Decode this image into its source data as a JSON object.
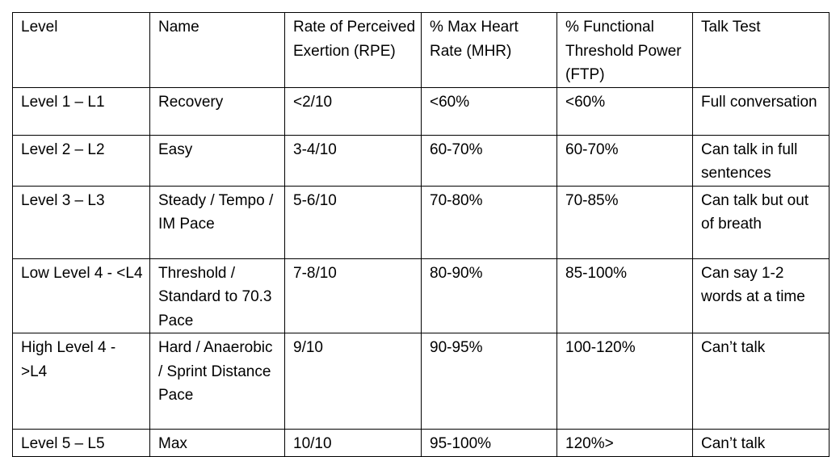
{
  "table": {
    "header": [
      "Level",
      "Name",
      "Rate of Perceived Exertion (RPE)",
      "% Max Heart Rate (MHR)",
      "% Functional Threshold Power (FTP)",
      "Talk Test"
    ],
    "rows": [
      [
        "Level 1 – L1",
        "Recovery",
        "<2/10",
        "<60%",
        "<60%",
        "Full conversation"
      ],
      [
        "Level 2 – L2",
        "Easy",
        "3-4/10",
        "60-70%",
        "60-70%",
        "Can talk in full sentences"
      ],
      [
        "Level 3 – L3",
        "Steady / Tempo / IM Pace",
        "5-6/10",
        "70-80%",
        "70-85%",
        "Can talk but out of breath"
      ],
      [
        "Low Level 4 - <L4",
        "Threshold / Standard to 70.3 Pace",
        "7-8/10",
        "80-90%",
        "85-100%",
        "Can say 1-2 words at a time"
      ],
      [
        "High Level 4 - >L4",
        "Hard / Anaerobic / Sprint Distance Pace",
        "9/10",
        "90-95%",
        "100-120%",
        "Can’t talk"
      ],
      [
        "Level 5 – L5",
        "Max",
        "10/10",
        "95-100%",
        "120%>",
        "Can’t talk"
      ]
    ]
  }
}
